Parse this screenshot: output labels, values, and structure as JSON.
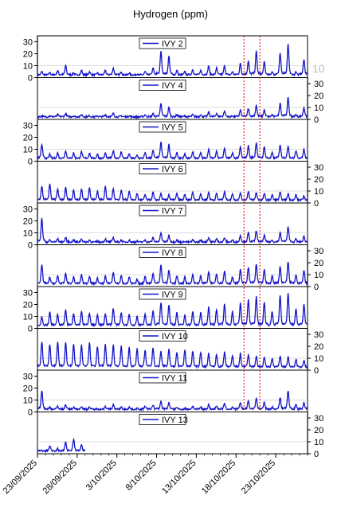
{
  "chart_data": {
    "type": "line",
    "title": "Hydrogen (ppm)",
    "x_tick_labels": [
      "23/09/2025",
      "28/09/2025",
      "3/10/2025",
      "8/10/2025",
      "13/10/2025",
      "18/10/2025",
      "23/10/2025"
    ],
    "x_range": [
      "23/09/2025",
      "27/10/2025"
    ],
    "y_ticks": [
      0,
      10,
      20,
      30
    ],
    "stray_label": "10",
    "grid": "horizontal line at 10",
    "vertical_markers": [
      "19/10/2025",
      "21/10/2025"
    ],
    "line_color": "#1414c8",
    "marker_color": "#cc0000",
    "panels": [
      {
        "name": "IVY 2",
        "axis_side": "left",
        "ylim": [
          0,
          35
        ],
        "peaks": [
          5,
          4,
          6,
          10,
          4,
          6,
          5,
          4,
          6,
          8,
          5,
          4,
          3,
          5,
          8,
          22,
          18,
          6,
          5,
          7,
          6,
          10,
          8,
          10,
          5,
          12,
          14,
          22,
          13,
          5,
          20,
          28,
          5,
          15,
          4,
          3
        ]
      },
      {
        "name": "IVY 4",
        "axis_side": "right",
        "ylim": [
          0,
          35
        ],
        "peaks": [
          3,
          3,
          4,
          5,
          3,
          4,
          3,
          3,
          4,
          5,
          3,
          3,
          2,
          4,
          5,
          13,
          10,
          4,
          3,
          4,
          4,
          6,
          5,
          7,
          3,
          8,
          9,
          12,
          8,
          4,
          14,
          18,
          4,
          10,
          3,
          2
        ]
      },
      {
        "name": "IVY 5",
        "axis_side": "left",
        "ylim": [
          0,
          35
        ],
        "peaks": [
          14,
          6,
          7,
          9,
          7,
          8,
          7,
          6,
          7,
          9,
          8,
          6,
          5,
          7,
          9,
          16,
          14,
          7,
          6,
          8,
          7,
          10,
          9,
          11,
          7,
          12,
          13,
          16,
          12,
          7,
          14,
          13,
          9,
          10,
          6,
          5
        ]
      },
      {
        "name": "IVY 6",
        "axis_side": "right",
        "ylim": [
          0,
          35
        ],
        "peaks": [
          14,
          16,
          12,
          13,
          11,
          12,
          13,
          10,
          14,
          12,
          11,
          10,
          8,
          7,
          9,
          8,
          7,
          8,
          7,
          9,
          8,
          9,
          8,
          10,
          8,
          9,
          10,
          9,
          8,
          7,
          9,
          8,
          7,
          6,
          5,
          4
        ]
      },
      {
        "name": "IVY 7",
        "axis_side": "left",
        "ylim": [
          0,
          35
        ],
        "peaks": [
          22,
          4,
          5,
          6,
          4,
          5,
          4,
          3,
          5,
          6,
          4,
          4,
          3,
          4,
          6,
          10,
          8,
          4,
          3,
          4,
          4,
          6,
          5,
          6,
          4,
          8,
          10,
          12,
          8,
          4,
          10,
          15,
          5,
          7,
          3,
          2
        ]
      },
      {
        "name": "IVY 8",
        "axis_side": "right",
        "ylim": [
          0,
          35
        ],
        "peaks": [
          18,
          8,
          9,
          11,
          8,
          10,
          9,
          7,
          9,
          12,
          9,
          8,
          6,
          9,
          11,
          18,
          14,
          9,
          8,
          10,
          9,
          12,
          11,
          13,
          8,
          15,
          16,
          19,
          14,
          9,
          17,
          21,
          10,
          14,
          7,
          6
        ]
      },
      {
        "name": "IVY 9",
        "axis_side": "left",
        "ylim": [
          0,
          35
        ],
        "peaks": [
          10,
          14,
          12,
          16,
          12,
          14,
          13,
          11,
          13,
          17,
          13,
          12,
          10,
          12,
          15,
          22,
          20,
          13,
          11,
          14,
          13,
          18,
          16,
          20,
          14,
          22,
          24,
          27,
          22,
          14,
          28,
          30,
          16,
          20,
          12,
          8
        ]
      },
      {
        "name": "IVY 10",
        "axis_side": "right",
        "ylim": [
          0,
          35
        ],
        "peaks": [
          24,
          22,
          24,
          23,
          22,
          21,
          23,
          20,
          22,
          21,
          20,
          19,
          18,
          17,
          19,
          16,
          18,
          15,
          17,
          16,
          15,
          14,
          13,
          15,
          12,
          14,
          13,
          12,
          11,
          10,
          12,
          11,
          9,
          8,
          6,
          5
        ]
      },
      {
        "name": "IVY 11",
        "axis_side": "left",
        "ylim": [
          0,
          35
        ],
        "peaks": [
          18,
          4,
          5,
          6,
          4,
          5,
          4,
          3,
          5,
          6,
          4,
          4,
          3,
          5,
          6,
          9,
          8,
          4,
          3,
          5,
          4,
          6,
          5,
          7,
          4,
          8,
          9,
          12,
          8,
          4,
          12,
          18,
          6,
          8,
          4,
          3
        ]
      },
      {
        "name": "IVY 13",
        "axis_side": "right",
        "ylim": [
          0,
          35
        ],
        "peaks": [
          3,
          7,
          4,
          10,
          12,
          8
        ]
      }
    ]
  }
}
